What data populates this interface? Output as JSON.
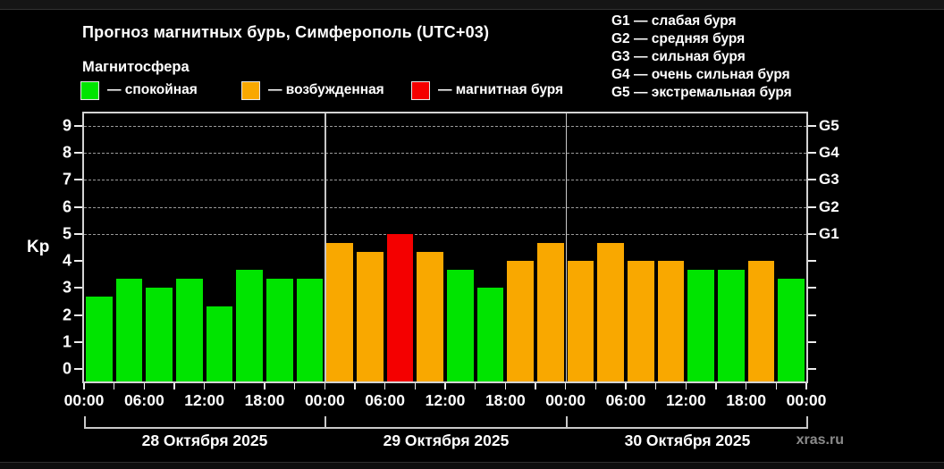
{
  "header": {
    "title": "Прогноз магнитных бурь, Симферополь (UTC+03)",
    "subtitle": "Магнитосфера",
    "state_legend": [
      {
        "name": "quiet",
        "label": "— спокойная",
        "color": "#00e400"
      },
      {
        "name": "active",
        "label": "— возбужденная",
        "color": "#f9a800"
      },
      {
        "name": "storm",
        "label": "— магнитная буря",
        "color": "#f40000"
      }
    ],
    "g_scale_legend": [
      {
        "label": "G1 — слабая буря"
      },
      {
        "label": "G2 — средняя буря"
      },
      {
        "label": "G3 — сильная буря"
      },
      {
        "label": "G4 — очень сильная буря"
      },
      {
        "label": "G5 — экстремальная буря"
      }
    ]
  },
  "chart_data": {
    "type": "bar",
    "title": "Прогноз магнитных бурь, Симферополь (UTC+03)",
    "ylabel_left": "Kp",
    "ylim": [
      0,
      9
    ],
    "y_ticks_left": [
      0,
      1,
      2,
      3,
      4,
      5,
      6,
      7,
      8,
      9
    ],
    "y_ticks_right": [
      {
        "value": 5,
        "label": "G1"
      },
      {
        "value": 6,
        "label": "G2"
      },
      {
        "value": 7,
        "label": "G3"
      },
      {
        "value": 8,
        "label": "G4"
      },
      {
        "value": 9,
        "label": "G5"
      }
    ],
    "grid_dashed_at": [
      5,
      6,
      7,
      8,
      9
    ],
    "bar_interval_hours": 3,
    "x_tick_labels": [
      "00:00",
      "06:00",
      "12:00",
      "18:00",
      "00:00",
      "06:00",
      "12:00",
      "18:00",
      "00:00",
      "06:00",
      "12:00",
      "18:00",
      "00:00"
    ],
    "days": [
      {
        "date": "28 Октября 2025",
        "values": [
          2.67,
          3.33,
          3.0,
          3.33,
          2.33,
          3.67,
          3.33,
          3.33
        ],
        "states": [
          "quiet",
          "quiet",
          "quiet",
          "quiet",
          "quiet",
          "quiet",
          "quiet",
          "quiet"
        ]
      },
      {
        "date": "29 Октября 2025",
        "values": [
          4.67,
          4.33,
          5.0,
          4.33,
          3.67,
          3.0,
          4.0,
          4.67
        ],
        "states": [
          "active",
          "active",
          "storm",
          "active",
          "quiet",
          "quiet",
          "active",
          "active"
        ]
      },
      {
        "date": "30 Октября 2025",
        "values": [
          4.0,
          4.67,
          4.0,
          4.0,
          3.67,
          3.67,
          4.0,
          3.33
        ],
        "states": [
          "active",
          "active",
          "active",
          "active",
          "quiet",
          "quiet",
          "active",
          "quiet"
        ]
      }
    ],
    "colors": {
      "quiet": "#00e400",
      "active": "#f9a800",
      "storm": "#f40000"
    },
    "legend_position": "top"
  },
  "footer": {
    "watermark": "xras.ru"
  }
}
